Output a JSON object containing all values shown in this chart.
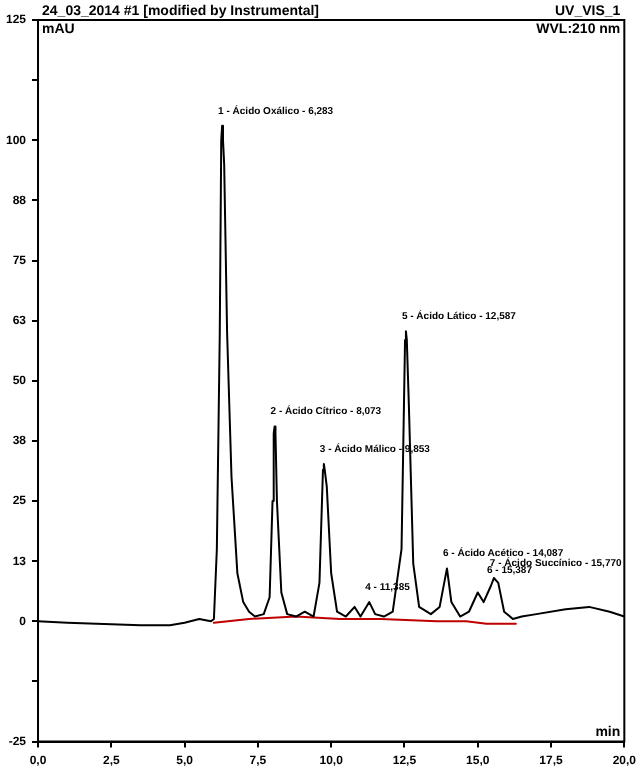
{
  "chart_data": {
    "type": "line",
    "title": "24_03_2014 #1 [modified by Instrumental]",
    "subtitle": "UV_VIS_1",
    "ylabel": "mAU",
    "xlabel": "min",
    "annotations": [
      "WVL:210 nm",
      {
        "text": "1 - Ácido Oxálico - 6,283",
        "x": 6.28,
        "y": 103
      },
      {
        "text": "2 - Ácido Cítrico - 8,073",
        "x": 8.07,
        "y": 40.5
      },
      {
        "text": "3 - Ácido Málico - 9,853",
        "x": 9.75,
        "y": 32.7
      },
      {
        "text": "4 - 11,385",
        "x": 11.3,
        "y": 4
      },
      {
        "text": "5 - Ácido Lático - 12,587",
        "x": 12.55,
        "y": 60.3
      },
      {
        "text": "6 - Ácido Acético - 14,087",
        "x": 13.95,
        "y": 11
      },
      {
        "text": "6 - 15,387",
        "x": 15.45,
        "y": 7.4
      },
      {
        "text": "7 - Ácido Succínico - 15,770",
        "x": 15.55,
        "y": 9
      }
    ],
    "series": [
      {
        "color": "#000000",
        "x": [
          0,
          1,
          2,
          3.5,
          4.5,
          5,
          5.5,
          5.9,
          6,
          6.1,
          6.2,
          6.25,
          6.28,
          6.31,
          6.35,
          6.45,
          6.6,
          6.8,
          7,
          7.2,
          7.4,
          7.7,
          7.9,
          8,
          8.04,
          8.07,
          8.1,
          8.15,
          8.3,
          8.5,
          8.8,
          9.1,
          9.4,
          9.6,
          9.72,
          9.75,
          9.78,
          9.85,
          10,
          10.2,
          10.5,
          10.8,
          11,
          11.3,
          11.5,
          11.8,
          12.1,
          12.4,
          12.52,
          12.55,
          12.58,
          12.65,
          12.8,
          13,
          13.4,
          13.7,
          13.95,
          14.1,
          14.4,
          14.7,
          15,
          15.2,
          15.45,
          15.55,
          15.7,
          15.9,
          16.2,
          16.5,
          17,
          18,
          18.8,
          19.5,
          20
        ],
        "values": [
          0,
          -0.3,
          -0.5,
          -0.8,
          -0.8,
          -0.3,
          0.5,
          0,
          0.5,
          15,
          60,
          100,
          103,
          100,
          95,
          60,
          30,
          10,
          4,
          2,
          1,
          1.5,
          5,
          25,
          39,
          40.5,
          39,
          25,
          6,
          1.5,
          1,
          2,
          1,
          8,
          31.5,
          32.7,
          31.5,
          28,
          10,
          2,
          1,
          3,
          1,
          4,
          1.5,
          1,
          2,
          15,
          58.5,
          60.3,
          58.5,
          45,
          12,
          3,
          1.5,
          3,
          11,
          4,
          1,
          2,
          6,
          4,
          7.4,
          9,
          8,
          2,
          0.5,
          1,
          1.5,
          2.5,
          3,
          2,
          1
        ]
      },
      {
        "color": "#c00000",
        "x": [
          6,
          7.2,
          8.8,
          10.3,
          11.7,
          13.6,
          14.6,
          15.3,
          16.3
        ],
        "values": [
          -0.3,
          0.5,
          1,
          0.5,
          0.5,
          0,
          0,
          -0.5,
          -0.5
        ]
      }
    ],
    "xlim": [
      0,
      20
    ],
    "xticks": [
      {
        "value": 0,
        "label": "0,0"
      },
      {
        "value": 2.5,
        "label": "2,5"
      },
      {
        "value": 5,
        "label": "5,0"
      },
      {
        "value": 7.5,
        "label": "7,5"
      },
      {
        "value": 10,
        "label": "10,0"
      },
      {
        "value": 12.5,
        "label": "12,5"
      },
      {
        "value": 15,
        "label": "15,0"
      },
      {
        "value": 17.5,
        "label": "17,5"
      },
      {
        "value": 20,
        "label": "20,0"
      }
    ],
    "ylim": [
      -25,
      125
    ],
    "yticks": [
      -25,
      {
        "value": -12.5,
        "label": null
      },
      0,
      {
        "value": 12.5,
        "label": "13"
      },
      25,
      {
        "value": 37.5,
        "label": "38"
      },
      50,
      {
        "value": 62.5,
        "label": "63"
      },
      75,
      {
        "value": 87.5,
        "label": "88"
      },
      100,
      {
        "value": 112.5,
        "label": null
      },
      125
    ],
    "grid": false,
    "legend": false,
    "marker": "none",
    "line_style": "solid"
  }
}
